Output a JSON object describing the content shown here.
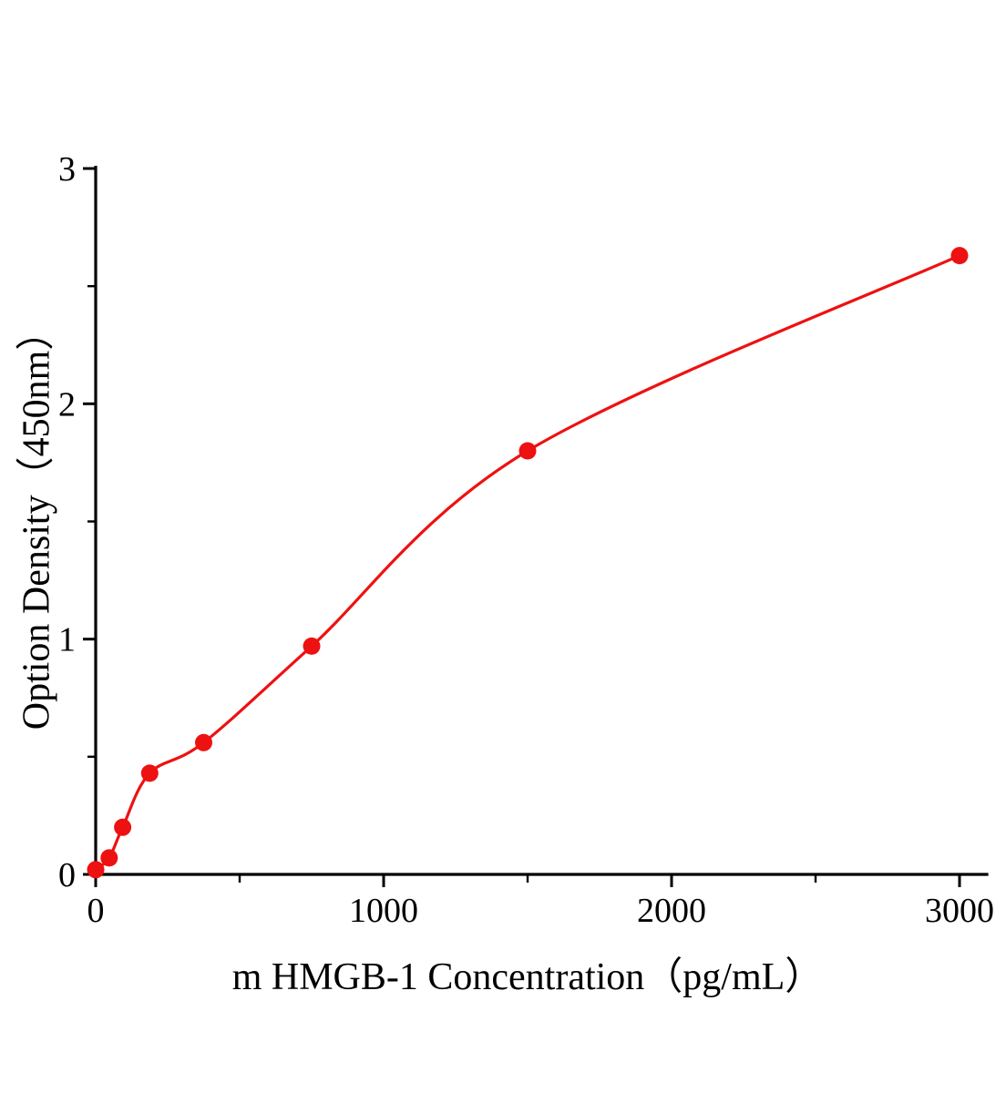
{
  "chart_data": {
    "type": "scatter",
    "title": "",
    "xlabel": "m HMGB-1 Concentration（pg/mL）",
    "ylabel": "Option Density（450nm）",
    "x": [
      0,
      46.9,
      93.8,
      187.5,
      375,
      750,
      1500,
      3000
    ],
    "y": [
      0.02,
      0.07,
      0.2,
      0.43,
      0.56,
      0.97,
      1.8,
      2.63
    ],
    "curve": "smooth fitted curve through data points",
    "xlim": [
      0,
      3100
    ],
    "ylim": [
      0,
      3
    ],
    "x_major_ticks": [
      0,
      1000,
      2000,
      3000
    ],
    "x_minor_ticks": [
      500,
      1500,
      2500
    ],
    "y_major_ticks": [
      0,
      1,
      2,
      3
    ],
    "y_minor_ticks": [
      0.5,
      1.5,
      2.5
    ],
    "grid": false,
    "legend": false,
    "point_color": "#ee1111",
    "curve_color": "#ee1111",
    "axis_color": "#000000"
  }
}
